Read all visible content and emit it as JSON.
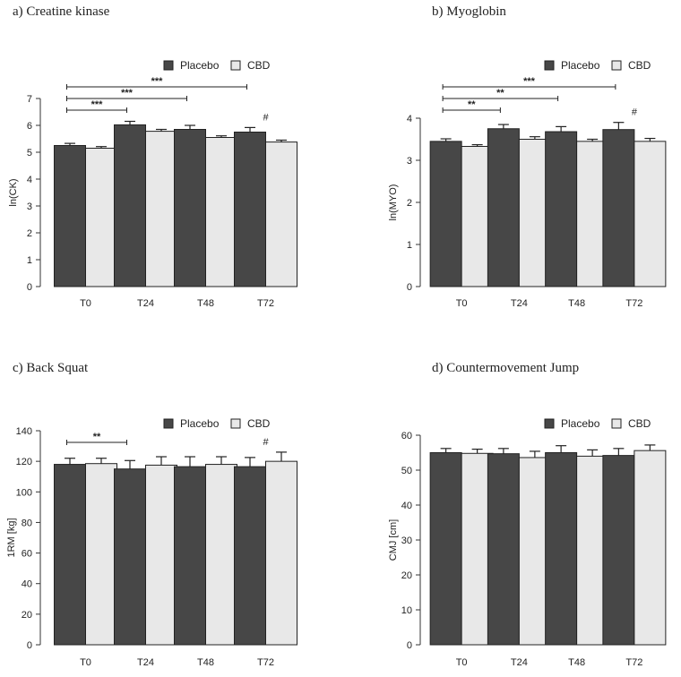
{
  "legend": {
    "placebo_label": "Placebo",
    "cbd_label": "CBD"
  },
  "colors": {
    "placebo": "#474747",
    "cbd": "#e8e8e8",
    "axis": "#333333"
  },
  "chart_data": [
    {
      "id": "a",
      "type": "bar",
      "title": "a) Creatine kinase",
      "ylabel": "ln(CK)",
      "categories": [
        "T0",
        "T24",
        "T48",
        "T72"
      ],
      "ylim": [
        0,
        7
      ],
      "yticks": [
        0,
        1,
        2,
        3,
        4,
        5,
        6,
        7
      ],
      "legend_position": "top-right",
      "series": [
        {
          "name": "Placebo",
          "values": [
            5.25,
            6.02,
            5.85,
            5.75
          ],
          "errors": [
            0.08,
            0.13,
            0.15,
            0.17
          ]
        },
        {
          "name": "CBD",
          "values": [
            5.15,
            5.78,
            5.55,
            5.38
          ],
          "errors": [
            0.06,
            0.07,
            0.06,
            0.07
          ]
        }
      ],
      "brackets": [
        {
          "from": "T0",
          "to": "T24",
          "label": "***"
        },
        {
          "from": "T0",
          "to": "T48",
          "label": "***"
        },
        {
          "from": "T0",
          "to": "T72",
          "label": "***"
        }
      ],
      "annotations": [
        {
          "category": "T72",
          "label": "#"
        }
      ]
    },
    {
      "id": "b",
      "type": "bar",
      "title": "b) Myoglobin",
      "ylabel": "ln(MYO)",
      "categories": [
        "T0",
        "T24",
        "T48",
        "T72"
      ],
      "ylim": [
        0,
        4
      ],
      "yticks": [
        0,
        1,
        2,
        3,
        4
      ],
      "legend_position": "top-right",
      "series": [
        {
          "name": "Placebo",
          "values": [
            3.45,
            3.75,
            3.68,
            3.73
          ],
          "errors": [
            0.06,
            0.1,
            0.12,
            0.17
          ]
        },
        {
          "name": "CBD",
          "values": [
            3.33,
            3.5,
            3.45,
            3.45
          ],
          "errors": [
            0.04,
            0.06,
            0.05,
            0.07
          ]
        }
      ],
      "brackets": [
        {
          "from": "T0",
          "to": "T24",
          "label": "**"
        },
        {
          "from": "T0",
          "to": "T48",
          "label": "**"
        },
        {
          "from": "T0",
          "to": "T72",
          "label": "***"
        }
      ],
      "annotations": [
        {
          "category": "T72",
          "label": "#"
        }
      ]
    },
    {
      "id": "c",
      "type": "bar",
      "title": "c) Back Squat",
      "ylabel": "1RM [kg]",
      "categories": [
        "T0",
        "T24",
        "T48",
        "T72"
      ],
      "ylim": [
        0,
        140
      ],
      "yticks": [
        0,
        20,
        40,
        60,
        80,
        100,
        120,
        140
      ],
      "legend_position": "top-right",
      "series": [
        {
          "name": "Placebo",
          "values": [
            118,
            115,
            116.5,
            116.5
          ],
          "errors": [
            4,
            5.5,
            6.5,
            6
          ]
        },
        {
          "name": "CBD",
          "values": [
            118.5,
            117.5,
            118,
            120
          ],
          "errors": [
            3.5,
            5.5,
            5,
            6
          ]
        }
      ],
      "brackets": [
        {
          "from": "T0",
          "to": "T24",
          "label": "**"
        }
      ],
      "annotations": [
        {
          "category": "T72",
          "label": "#"
        }
      ]
    },
    {
      "id": "d",
      "type": "bar",
      "title": "d) Countermovement Jump",
      "ylabel": "CMJ [cm]",
      "categories": [
        "T0",
        "T24",
        "T48",
        "T72"
      ],
      "ylim": [
        0,
        60
      ],
      "yticks": [
        0,
        10,
        20,
        30,
        40,
        50,
        60
      ],
      "legend_position": "top-right",
      "series": [
        {
          "name": "Placebo",
          "values": [
            55,
            54.7,
            55,
            54.2
          ],
          "errors": [
            1.2,
            1.5,
            2,
            2
          ]
        },
        {
          "name": "CBD",
          "values": [
            54.8,
            53.6,
            54,
            55.6
          ],
          "errors": [
            1.2,
            1.8,
            1.8,
            1.6
          ]
        }
      ],
      "brackets": [],
      "annotations": []
    }
  ]
}
